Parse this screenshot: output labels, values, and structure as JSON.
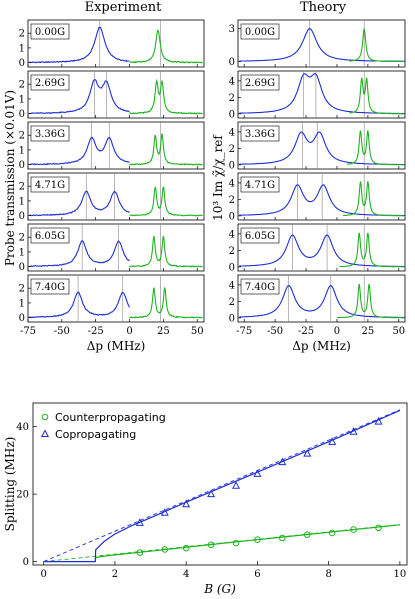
{
  "figure": {
    "left_title": "Experiment",
    "right_title": "Theory",
    "left_ylabel": "Probe transmission (×0.01V)",
    "right_ylabel": "10³ Im χ̃/χ_ref",
    "colors": {
      "blue": "#1f2fd6",
      "green": "#1fb51f",
      "gray": "#888888"
    }
  },
  "chart_data": [
    {
      "type": "line",
      "panel": "experiment",
      "xlabel": "Δp (MHz)",
      "xlim": [
        -75,
        55
      ],
      "xticks": [
        -75,
        -50,
        -25,
        0,
        25,
        50
      ],
      "rows": [
        {
          "label": "0.00G",
          "ylim": [
            -0.3,
            2.9
          ],
          "yticks": [
            0,
            1,
            2
          ],
          "vlines": [
            -22,
            23
          ],
          "blue_peaks": [
            [
              -22,
              2.4,
              4.5
            ]
          ],
          "green_peaks": [
            [
              21,
              2.2,
              2.0
            ]
          ],
          "green_start": 8
        },
        {
          "label": "2.69G",
          "ylim": [
            -0.3,
            2.9
          ],
          "yticks": [
            0,
            1,
            2
          ],
          "vlines": [
            -26,
            -17,
            23
          ],
          "blue_peaks": [
            [
              -26,
              2.0,
              4.0
            ],
            [
              -17,
              1.9,
              4.0
            ]
          ],
          "green_peaks": [
            [
              20,
              2.0,
              1.4
            ],
            [
              24,
              2.0,
              1.4
            ]
          ],
          "green_start": 8
        },
        {
          "label": "3.36G",
          "ylim": [
            -0.3,
            2.9
          ],
          "yticks": [
            0,
            1,
            2
          ],
          "vlines": [
            -28,
            -15,
            23
          ],
          "blue_peaks": [
            [
              -28,
              1.7,
              4.0
            ],
            [
              -15,
              1.7,
              4.0
            ]
          ],
          "green_peaks": [
            [
              19,
              1.9,
              1.2
            ],
            [
              24,
              2.0,
              1.2
            ]
          ],
          "green_start": 8
        },
        {
          "label": "4.71G",
          "ylim": [
            -0.3,
            2.9
          ],
          "yticks": [
            0,
            1,
            2
          ],
          "vlines": [
            -32,
            -11,
            23
          ],
          "blue_peaks": [
            [
              -32,
              1.6,
              4.0
            ],
            [
              -11,
              1.6,
              4.0
            ]
          ],
          "green_peaks": [
            [
              19,
              1.9,
              1.2
            ],
            [
              25,
              1.9,
              1.2
            ]
          ],
          "green_start": 8
        },
        {
          "label": "6.05G",
          "ylim": [
            -0.3,
            2.9
          ],
          "yticks": [
            0,
            1,
            2
          ],
          "vlines": [
            -35,
            -8,
            23
          ],
          "blue_peaks": [
            [
              -35,
              1.7,
              4.0
            ],
            [
              -8,
              1.7,
              4.0
            ]
          ],
          "green_peaks": [
            [
              18,
              2.0,
              1.2
            ],
            [
              25,
              2.0,
              1.2
            ]
          ],
          "green_start": 8
        },
        {
          "label": "7.40G",
          "ylim": [
            -0.3,
            2.9
          ],
          "yticks": [
            0,
            1,
            2
          ],
          "vlines": [
            -38,
            -5,
            23
          ],
          "blue_peaks": [
            [
              -38,
              1.7,
              4.0
            ],
            [
              -5,
              1.7,
              4.0
            ]
          ],
          "green_peaks": [
            [
              18,
              2.0,
              1.2
            ],
            [
              26,
              2.0,
              1.2
            ]
          ],
          "green_start": 8
        }
      ]
    },
    {
      "type": "line",
      "panel": "theory",
      "xlabel": "Δp (MHz)",
      "xlim": [
        -80,
        55
      ],
      "xticks": [
        -75,
        -50,
        -25,
        0,
        25,
        50
      ],
      "rows": [
        {
          "label": "0.00G",
          "ylim": [
            -0.5,
            3.8
          ],
          "yticks": [
            0,
            3
          ],
          "vlines": [
            -22,
            22
          ],
          "blue_peaks": [
            [
              -22,
              3.0,
              7.0
            ]
          ],
          "green_peaks": [
            [
              22,
              3.0,
              1.5
            ]
          ],
          "green_start": 10
        },
        {
          "label": "2.69G",
          "ylim": [
            -0.5,
            5.2
          ],
          "yticks": [
            0,
            2,
            4
          ],
          "vlines": [
            -27,
            -17,
            22
          ],
          "blue_peaks": [
            [
              -27,
              3.8,
              6.0
            ],
            [
              -17,
              3.8,
              6.0
            ]
          ],
          "green_peaks": [
            [
              20,
              4.0,
              1.3
            ],
            [
              24,
              4.0,
              1.3
            ]
          ],
          "green_start": 10
        },
        {
          "label": "3.36G",
          "ylim": [
            -0.5,
            5.2
          ],
          "yticks": [
            0,
            2,
            4
          ],
          "vlines": [
            -28,
            -16,
            22
          ],
          "blue_peaks": [
            [
              -29,
              3.5,
              6.0
            ],
            [
              -14,
              3.5,
              6.0
            ]
          ],
          "green_peaks": [
            [
              19,
              4.0,
              1.3
            ],
            [
              25,
              4.0,
              1.3
            ]
          ],
          "green_start": 8
        },
        {
          "label": "4.71G",
          "ylim": [
            -0.5,
            5.2
          ],
          "yticks": [
            0,
            2,
            4
          ],
          "vlines": [
            -32,
            -12,
            22
          ],
          "blue_peaks": [
            [
              -32,
              3.5,
              6.0
            ],
            [
              -11,
              3.5,
              6.0
            ]
          ],
          "green_peaks": [
            [
              19,
              4.0,
              1.3
            ],
            [
              25,
              4.0,
              1.3
            ]
          ],
          "green_start": 5
        },
        {
          "label": "6.05G",
          "ylim": [
            -0.5,
            5.2
          ],
          "yticks": [
            0,
            2,
            4
          ],
          "vlines": [
            -36,
            -8,
            22
          ],
          "blue_peaks": [
            [
              -36,
              3.7,
              6.0
            ],
            [
              -8,
              3.7,
              6.0
            ]
          ],
          "green_peaks": [
            [
              18,
              4.0,
              1.3
            ],
            [
              25,
              4.0,
              1.3
            ]
          ],
          "green_start": 2
        },
        {
          "label": "7.40G",
          "ylim": [
            -0.5,
            5.2
          ],
          "yticks": [
            0,
            2,
            4
          ],
          "vlines": [
            -39,
            -5,
            22
          ],
          "blue_peaks": [
            [
              -39,
              3.8,
              6.0
            ],
            [
              -5,
              3.8,
              6.0
            ]
          ],
          "green_peaks": [
            [
              18,
              4.0,
              1.3
            ],
            [
              26,
              4.0,
              1.3
            ]
          ],
          "green_start": 0
        }
      ]
    },
    {
      "type": "scatter",
      "panel": "splitting",
      "xlabel": "B (G)",
      "ylabel": "Splitting (MHz)",
      "xlim": [
        -0.3,
        10.2
      ],
      "ylim": [
        -1,
        47
      ],
      "xticks": [
        0,
        2,
        4,
        6,
        8,
        10
      ],
      "yticks": [
        0,
        20,
        40
      ],
      "legend_position": "top-left",
      "series": [
        {
          "name": "Counterpropagating",
          "marker": "circle",
          "color": "#1fb51f",
          "points": [
            [
              2.7,
              2.7
            ],
            [
              3.4,
              3.6
            ],
            [
              4.0,
              4.0
            ],
            [
              4.7,
              5.0
            ],
            [
              5.4,
              5.5
            ],
            [
              6.0,
              6.5
            ],
            [
              6.7,
              7.0
            ],
            [
              7.4,
              8.0
            ],
            [
              8.1,
              8.5
            ],
            [
              8.7,
              9.5
            ],
            [
              9.4,
              10.0
            ]
          ],
          "fit_dashed": [
            [
              0,
              0
            ],
            [
              10,
              11
            ]
          ],
          "fit_solid": [
            [
              1.45,
              0
            ],
            [
              1.46,
              1.2
            ],
            [
              1.6,
              1.5
            ],
            [
              2.0,
              2.0
            ],
            [
              3.0,
              3.1
            ],
            [
              5.0,
              5.4
            ],
            [
              7.0,
              7.6
            ],
            [
              10,
              10.9
            ]
          ]
        },
        {
          "name": "Copropagating",
          "marker": "triangle",
          "color": "#1f2fd6",
          "points": [
            [
              2.7,
              11.5
            ],
            [
              3.4,
              14.5
            ],
            [
              4.0,
              17.0
            ],
            [
              4.7,
              20.0
            ],
            [
              5.4,
              22.5
            ],
            [
              6.0,
              26.0
            ],
            [
              6.7,
              29.5
            ],
            [
              7.4,
              32.0
            ],
            [
              8.1,
              35.5
            ],
            [
              8.7,
              38.5
            ],
            [
              9.4,
              41.5
            ]
          ],
          "fit_dashed": [
            [
              0,
              0
            ],
            [
              10,
              45
            ]
          ],
          "fit_solid": [
            [
              0,
              0
            ],
            [
              1.45,
              0
            ],
            [
              1.46,
              3.5
            ],
            [
              1.7,
              6.0
            ],
            [
              2.0,
              8.2
            ],
            [
              2.5,
              10.8
            ],
            [
              3.0,
              13.0
            ],
            [
              4.0,
              17.6
            ],
            [
              6.0,
              26.5
            ],
            [
              8.0,
              35.5
            ],
            [
              10,
              44.8
            ]
          ]
        }
      ]
    }
  ]
}
